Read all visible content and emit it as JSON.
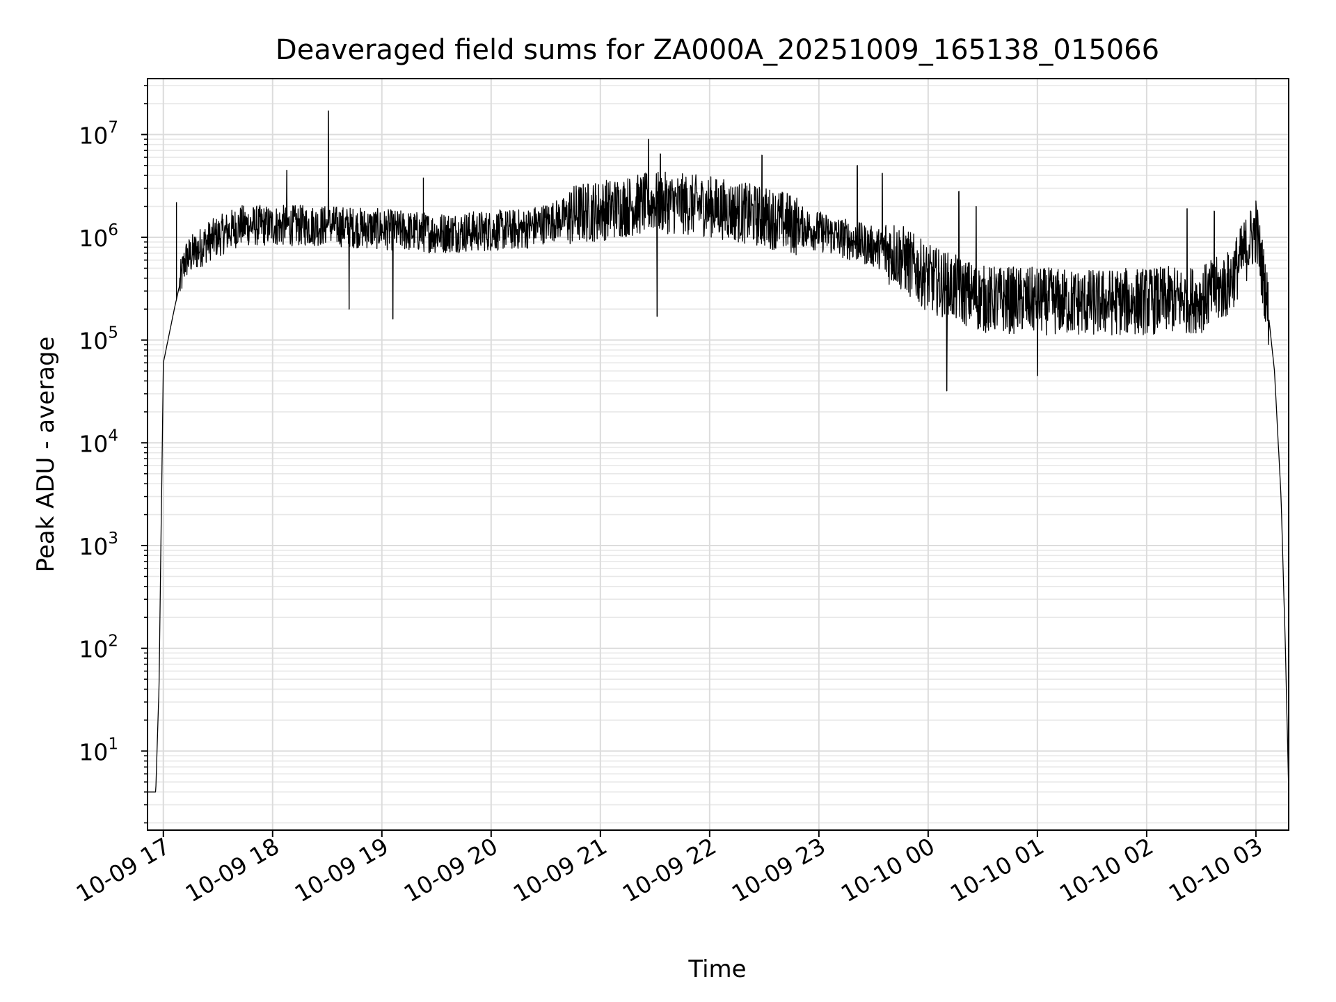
{
  "chart_data": {
    "type": "line",
    "title": "Deaveraged field sums for ZA000A_20251009_165138_015066",
    "xlabel": "Time",
    "ylabel": "Peak ADU - average",
    "yscale": "log",
    "ylim": [
      1.7,
      35000000
    ],
    "xlim_hours_from_2025-10-09_16:00": [
      0.855,
      11.3
    ],
    "grid": true,
    "line_color": "#000000",
    "x_ticks": [
      {
        "label": "10-09 17",
        "hour": 1
      },
      {
        "label": "10-09 18",
        "hour": 2
      },
      {
        "label": "10-09 19",
        "hour": 3
      },
      {
        "label": "10-09 20",
        "hour": 4
      },
      {
        "label": "10-09 21",
        "hour": 5
      },
      {
        "label": "10-09 22",
        "hour": 6
      },
      {
        "label": "10-09 23",
        "hour": 7
      },
      {
        "label": "10-10 00",
        "hour": 8
      },
      {
        "label": "10-10 01",
        "hour": 9
      },
      {
        "label": "10-10 02",
        "hour": 10
      },
      {
        "label": "10-10 03",
        "hour": 11
      }
    ],
    "y_ticks": [
      {
        "base": "10",
        "exp": "1",
        "value": 10
      },
      {
        "base": "10",
        "exp": "2",
        "value": 100
      },
      {
        "base": "10",
        "exp": "3",
        "value": 1000
      },
      {
        "base": "10",
        "exp": "4",
        "value": 10000
      },
      {
        "base": "10",
        "exp": "5",
        "value": 100000
      },
      {
        "base": "10",
        "exp": "6",
        "value": 1000000
      },
      {
        "base": "10",
        "exp": "7",
        "value": 10000000
      }
    ],
    "series": [
      {
        "name": "deaveraged field sum",
        "envelope": [
          {
            "hour": 0.86,
            "value": 4
          },
          {
            "hour": 0.93,
            "value": 4
          },
          {
            "hour": 0.96,
            "value": 40
          },
          {
            "hour": 1.0,
            "value": 60000
          },
          {
            "hour": 1.1,
            "value": 200000
          },
          {
            "hour": 1.2,
            "value": 600000
          },
          {
            "hour": 1.4,
            "value": 900000
          },
          {
            "hour": 1.7,
            "value": 1300000
          },
          {
            "hour": 2.5,
            "value": 1300000
          },
          {
            "hour": 3.5,
            "value": 1100000
          },
          {
            "hour": 4.3,
            "value": 1200000
          },
          {
            "hour": 4.8,
            "value": 1700000
          },
          {
            "hour": 5.5,
            "value": 2200000
          },
          {
            "hour": 6.0,
            "value": 2000000
          },
          {
            "hour": 6.6,
            "value": 1500000
          },
          {
            "hour": 7.2,
            "value": 1000000
          },
          {
            "hour": 7.7,
            "value": 700000
          },
          {
            "hour": 8.0,
            "value": 400000
          },
          {
            "hour": 8.5,
            "value": 250000
          },
          {
            "hour": 9.5,
            "value": 230000
          },
          {
            "hour": 10.5,
            "value": 250000
          },
          {
            "hour": 10.75,
            "value": 350000
          },
          {
            "hour": 11.0,
            "value": 1200000
          },
          {
            "hour": 11.1,
            "value": 250000
          },
          {
            "hour": 11.17,
            "value": 50000
          },
          {
            "hour": 11.23,
            "value": 3000
          },
          {
            "hour": 11.27,
            "value": 100
          },
          {
            "hour": 11.3,
            "value": 4
          }
        ],
        "spikes": [
          {
            "hour": 2.51,
            "value": 17000000
          },
          {
            "hour": 2.13,
            "value": 4500000
          },
          {
            "hour": 3.38,
            "value": 3800000
          },
          {
            "hour": 5.44,
            "value": 9000000
          },
          {
            "hour": 5.55,
            "value": 6500000
          },
          {
            "hour": 6.48,
            "value": 6300000
          },
          {
            "hour": 7.35,
            "value": 5000000
          },
          {
            "hour": 7.58,
            "value": 4200000
          },
          {
            "hour": 8.28,
            "value": 2800000
          },
          {
            "hour": 8.44,
            "value": 2000000
          },
          {
            "hour": 10.37,
            "value": 1900000
          },
          {
            "hour": 10.62,
            "value": 1800000
          },
          {
            "hour": 1.12,
            "value": 2200000
          },
          {
            "hour": 8.17,
            "value": 32000
          },
          {
            "hour": 9.0,
            "value": 45000
          },
          {
            "hour": 5.52,
            "value": 170000
          },
          {
            "hour": 3.1,
            "value": 160000
          },
          {
            "hour": 2.7,
            "value": 200000
          }
        ]
      }
    ]
  }
}
